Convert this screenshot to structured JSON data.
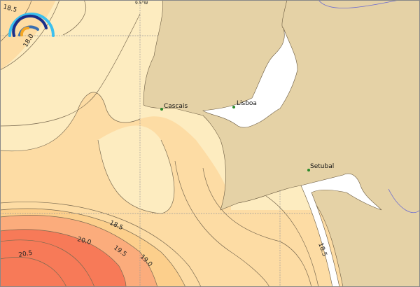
{
  "map": {
    "grid_label": "9.5°W",
    "colors": {
      "land": "#e5d2a6",
      "sea_18": "#fdecc0",
      "sea_18_5": "#fddca4",
      "sea_19": "#fccf8c",
      "sea_19_5": "#fbac7c",
      "sea_20": "#f99a70",
      "sea_20_5": "#f77a58",
      "estuary": "#ffffff"
    },
    "contour_labels": [
      "18.5",
      "18.0",
      "18.5",
      "20.0",
      "19.5",
      "19.0",
      "20.5",
      "18.5"
    ],
    "cities": [
      {
        "name": "Cascais"
      },
      {
        "name": "Lisboa"
      },
      {
        "name": "Setubal"
      }
    ],
    "logo": "wave-arc-logo"
  }
}
